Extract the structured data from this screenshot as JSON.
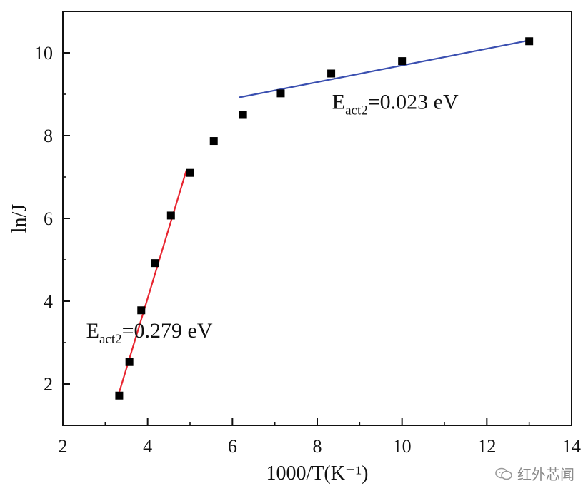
{
  "chart_data": {
    "type": "scatter",
    "title": "",
    "xlabel": "1000/T(K⁻¹)",
    "ylabel": "ln/J",
    "xlim": [
      2,
      14
    ],
    "ylim": [
      1.0,
      11.0
    ],
    "xticks": [
      2,
      4,
      6,
      8,
      10,
      12,
      14
    ],
    "yticks": [
      2,
      4,
      6,
      8,
      10
    ],
    "series": [
      {
        "name": "data",
        "marker": "square",
        "color": "#000000",
        "points": [
          {
            "x": 3.33,
            "y": 1.72
          },
          {
            "x": 3.57,
            "y": 2.53
          },
          {
            "x": 3.85,
            "y": 3.78
          },
          {
            "x": 4.17,
            "y": 4.92
          },
          {
            "x": 4.55,
            "y": 6.07
          },
          {
            "x": 5.0,
            "y": 7.1
          },
          {
            "x": 5.56,
            "y": 7.87
          },
          {
            "x": 6.25,
            "y": 8.5
          },
          {
            "x": 7.14,
            "y": 9.02
          },
          {
            "x": 8.33,
            "y": 9.5
          },
          {
            "x": 10.0,
            "y": 9.8
          },
          {
            "x": 13.0,
            "y": 10.28
          }
        ]
      }
    ],
    "fits": [
      {
        "name": "low-temp-fit",
        "color": "#e8242f",
        "x1": 3.33,
        "y1": 1.8,
        "x2": 4.92,
        "y2": 7.18
      },
      {
        "name": "high-temp-fit",
        "color": "#3a4fb0",
        "x1": 6.15,
        "y1": 8.92,
        "x2": 13.0,
        "y2": 10.3
      }
    ],
    "annotations": [
      {
        "name": "annotation-high",
        "base": "E",
        "sub": "act2",
        "tail": "=0.023 eV",
        "x": 8.35,
        "y": 8.65
      },
      {
        "name": "annotation-low",
        "base": "E",
        "sub": "act2",
        "tail": "=0.279 eV",
        "x": 2.55,
        "y": 3.12
      }
    ]
  },
  "watermark": {
    "text": "红外芯闻",
    "icon": "wechat-icon"
  }
}
